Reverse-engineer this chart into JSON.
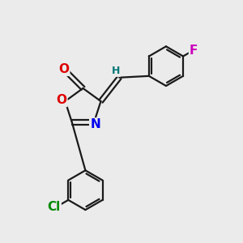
{
  "bg_color": "#ebebeb",
  "bond_color": "#1a1a1a",
  "bond_width": 1.6,
  "atom_colors": {
    "O": "#dd0000",
    "N": "#0000ee",
    "Cl": "#008800",
    "F": "#cc00bb",
    "H_label": "#007777",
    "C": "#1a1a1a"
  },
  "font_size": 10,
  "fig_size": [
    3.0,
    3.0
  ],
  "dpi": 100
}
